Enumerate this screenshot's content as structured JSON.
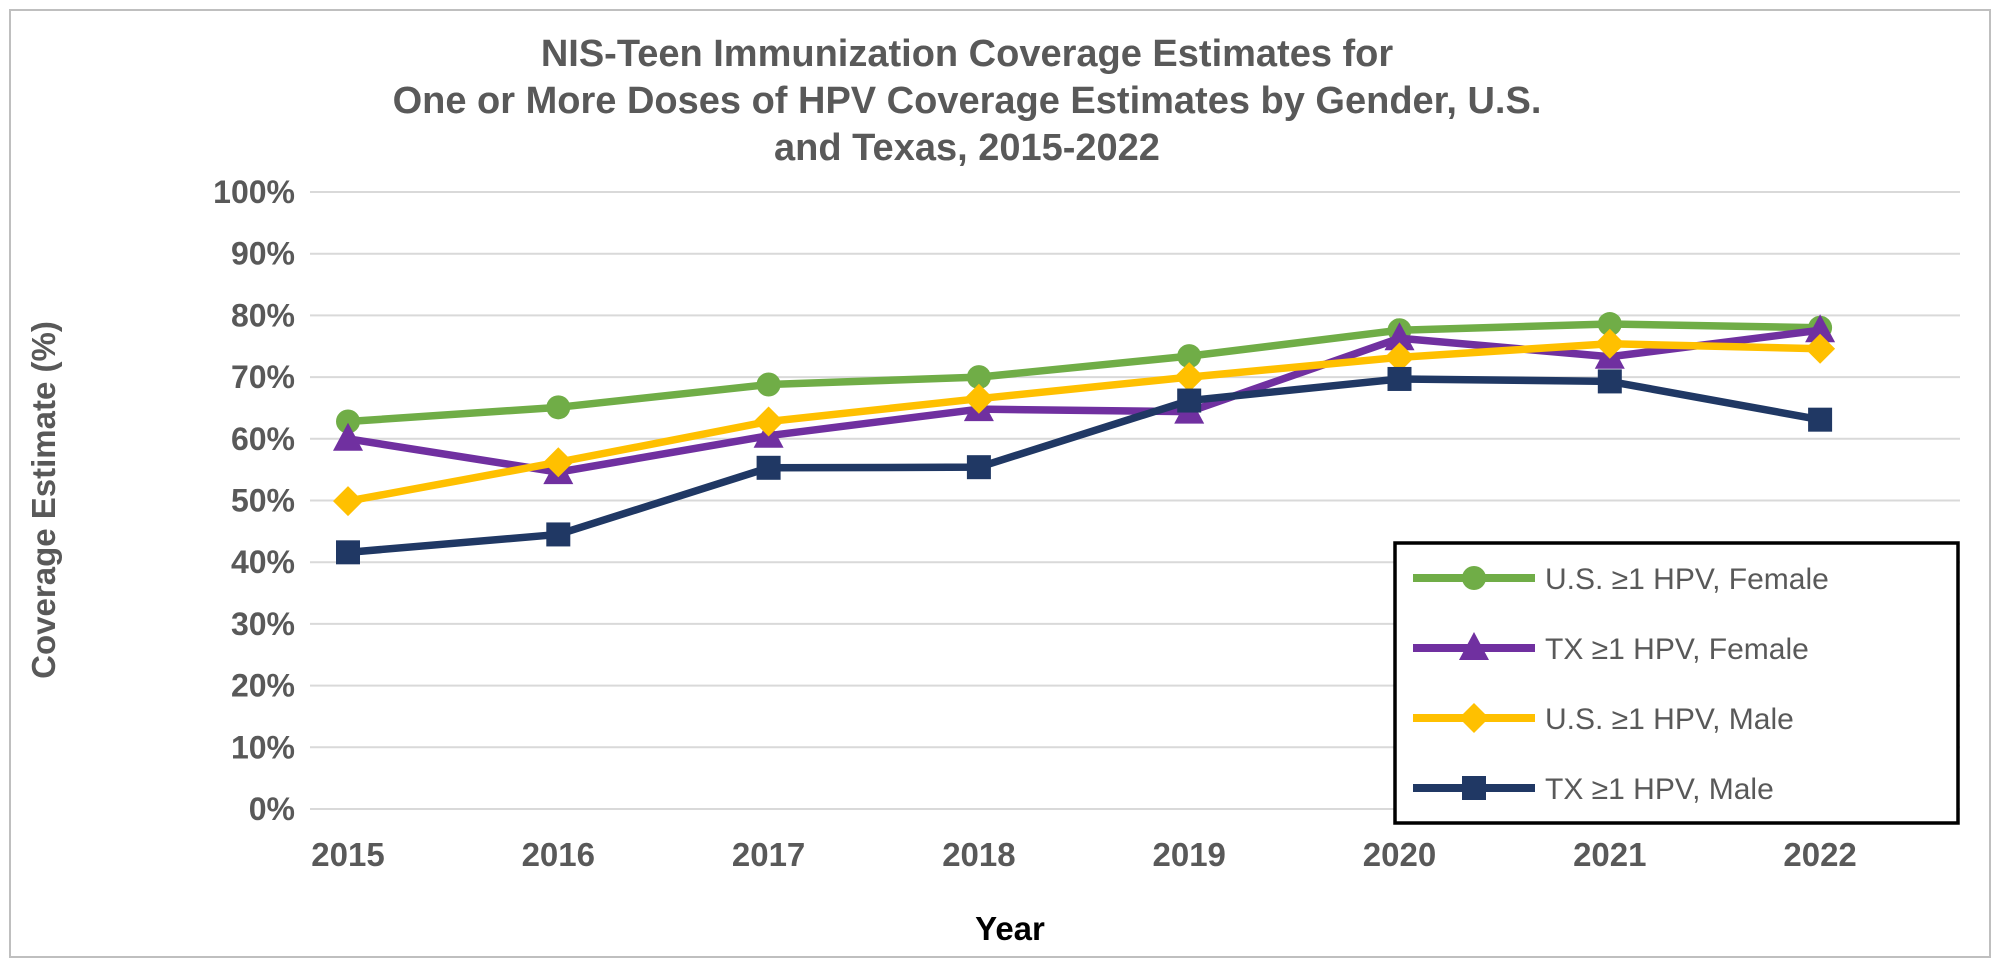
{
  "figure": {
    "border_color": "#BFBFBF",
    "background": "#FFFFFF"
  },
  "chart_data": {
    "type": "line",
    "title": "NIS-Teen Immunization Coverage Estimates for One or More Doses of HPV Coverage Estimates by Gender, U.S. and Texas, 2015-2022",
    "title_lines": [
      "NIS-Teen Immunization Coverage Estimates for",
      "One or More Doses of HPV Coverage Estimates by Gender, U.S.",
      "and Texas, 2015-2022"
    ],
    "xlabel": "Year",
    "ylabel": "Coverage Estimate (%)",
    "categories": [
      "2015",
      "2016",
      "2017",
      "2018",
      "2019",
      "2020",
      "2021",
      "2022"
    ],
    "ylim": [
      0,
      100
    ],
    "ytick_step": 10,
    "ytick_labels": [
      "0%",
      "10%",
      "20%",
      "30%",
      "40%",
      "50%",
      "60%",
      "70%",
      "80%",
      "90%",
      "100%"
    ],
    "grid": true,
    "legend_position": "inside-bottom-right",
    "series": [
      {
        "name": "U.S. ≥1 HPV, Female",
        "color": "#70AD47",
        "marker": "circle",
        "values": [
          62.8,
          65.1,
          68.8,
          70.0,
          73.4,
          77.6,
          78.6,
          78.0
        ]
      },
      {
        "name": "TX ≥1 HPV, Female",
        "color": "#7030A0",
        "marker": "triangle",
        "values": [
          60.0,
          54.6,
          60.5,
          64.8,
          64.4,
          76.3,
          73.3,
          77.6
        ]
      },
      {
        "name": "U.S. ≥1 HPV, Male",
        "color": "#FFC000",
        "marker": "diamond",
        "values": [
          49.9,
          56.2,
          62.8,
          66.5,
          70.0,
          73.2,
          75.4,
          74.6
        ]
      },
      {
        "name": "TX ≥1 HPV, Male",
        "color": "#203864",
        "marker": "square",
        "values": [
          41.6,
          44.5,
          55.3,
          55.4,
          66.2,
          69.7,
          69.3,
          63.1
        ]
      }
    ],
    "colors": {
      "title_text": "#595959",
      "axis_text": "#595959",
      "xlabel_text": "#000000",
      "grid": "#D9D9D9",
      "legend_border": "#000000",
      "legend_text": "#595959"
    }
  }
}
